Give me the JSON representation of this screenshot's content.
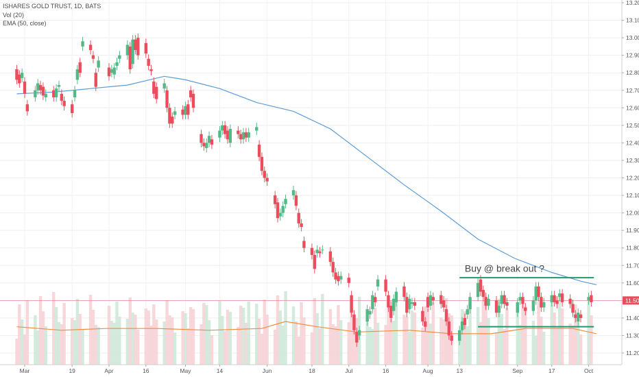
{
  "legend": {
    "title": "ISHARES GOLD TRUST, 1D, BATS",
    "vol": "Vol (20)",
    "ema": "EMA (50, close)"
  },
  "colors": {
    "up": "#53b987",
    "down": "#eb4d5c",
    "ema": "#5b9bd5",
    "vol_ma": "#f28c3c",
    "trendline": "#1e9a6e",
    "price_line": "#eb4d5c"
  },
  "current_price": "11.50",
  "annotation": "Buy @ break out ?",
  "chart_data": {
    "type": "candlestick",
    "title": "ISHARES GOLD TRUST, 1D, BATS",
    "yticks": [
      "13.20",
      "13.10",
      "13.00",
      "12.90",
      "12.80",
      "12.70",
      "12.60",
      "12.50",
      "12.40",
      "12.30",
      "12.20",
      "12.10",
      "12.00",
      "11.90",
      "11.80",
      "11.70",
      "11.60",
      "11.50",
      "11.40",
      "11.30",
      "11.20"
    ],
    "ylim": [
      11.17,
      13.22
    ],
    "xticks": [
      "Mar",
      "19",
      "Apr",
      "16",
      "May",
      "14",
      "Jun",
      "18",
      "Jul",
      "16",
      "Aug",
      "13",
      "Sep",
      "17",
      "Oct"
    ],
    "x_range_days": [
      "2018-02-26",
      "2018-10-05"
    ],
    "trendlines": [
      {
        "from": "2018-08-13",
        "to": "2018-10-03",
        "value": 11.63
      },
      {
        "from": "2018-08-20",
        "to": "2018-10-03",
        "value": 11.35
      }
    ],
    "annotation": {
      "text": "Buy @ break out ?",
      "date": "2018-08-15",
      "value": 11.68
    },
    "series": [
      {
        "name": "EMA (50, close)",
        "type": "line",
        "points": [
          [
            "2018-02-26",
            12.68
          ],
          [
            "2018-03-12",
            12.69
          ],
          [
            "2018-03-26",
            12.71
          ],
          [
            "2018-04-09",
            12.73
          ],
          [
            "2018-04-23",
            12.78
          ],
          [
            "2018-05-01",
            12.76
          ],
          [
            "2018-05-14",
            12.71
          ],
          [
            "2018-05-28",
            12.63
          ],
          [
            "2018-06-11",
            12.58
          ],
          [
            "2018-06-25",
            12.48
          ],
          [
            "2018-07-09",
            12.32
          ],
          [
            "2018-07-23",
            12.16
          ],
          [
            "2018-08-06",
            12.01
          ],
          [
            "2018-08-20",
            11.85
          ],
          [
            "2018-09-03",
            11.74
          ],
          [
            "2018-09-17",
            11.66
          ],
          [
            "2018-09-28",
            11.61
          ],
          [
            "2018-10-04",
            11.59
          ]
        ]
      },
      {
        "name": "Vol (20) MA",
        "type": "line",
        "points": [
          [
            "2018-02-26",
            11.35
          ],
          [
            "2018-03-15",
            11.33
          ],
          [
            "2018-04-01",
            11.34
          ],
          [
            "2018-04-20",
            11.34
          ],
          [
            "2018-05-10",
            11.33
          ],
          [
            "2018-05-30",
            11.34
          ],
          [
            "2018-06-08",
            11.38
          ],
          [
            "2018-06-20",
            11.35
          ],
          [
            "2018-07-05",
            11.32
          ],
          [
            "2018-07-25",
            11.33
          ],
          [
            "2018-08-10",
            11.31
          ],
          [
            "2018-08-25",
            11.31
          ],
          [
            "2018-09-07",
            11.34
          ],
          [
            "2018-09-25",
            11.34
          ],
          [
            "2018-10-04",
            11.31
          ]
        ]
      }
    ],
    "candles": [
      [
        "2018-02-26",
        12.82,
        12.76
      ],
      [
        "2018-02-27",
        12.79,
        12.74
      ],
      [
        "2018-02-28",
        12.77,
        12.8
      ],
      [
        "2018-03-01",
        12.75,
        12.68
      ],
      [
        "2018-03-02",
        12.62,
        12.58
      ],
      [
        "2018-03-05",
        12.66,
        12.7
      ],
      [
        "2018-03-06",
        12.7,
        12.74
      ],
      [
        "2018-03-07",
        12.73,
        12.7
      ],
      [
        "2018-03-08",
        12.72,
        12.67
      ],
      [
        "2018-03-09",
        12.66,
        12.68
      ],
      [
        "2018-03-12",
        12.7,
        12.66
      ],
      [
        "2018-03-13",
        12.66,
        12.71
      ],
      [
        "2018-03-14",
        12.72,
        12.73
      ],
      [
        "2018-03-15",
        12.68,
        12.64
      ],
      [
        "2018-03-16",
        12.64,
        12.61
      ],
      [
        "2018-03-19",
        12.62,
        12.57
      ],
      [
        "2018-03-20",
        12.66,
        12.7
      ],
      [
        "2018-03-21",
        12.76,
        12.82
      ],
      [
        "2018-03-22",
        12.86,
        12.8
      ],
      [
        "2018-03-23",
        12.95,
        12.98
      ],
      [
        "2018-03-26",
        12.96,
        12.93
      ],
      [
        "2018-03-27",
        12.9,
        12.88
      ],
      [
        "2018-03-28",
        12.8,
        12.72
      ],
      [
        "2018-03-29",
        12.83,
        12.87
      ],
      [
        "2018-04-02",
        12.83,
        12.78
      ],
      [
        "2018-04-03",
        12.8,
        12.82
      ],
      [
        "2018-04-04",
        12.79,
        12.83
      ],
      [
        "2018-04-05",
        12.84,
        12.86
      ],
      [
        "2018-04-06",
        12.88,
        12.9
      ],
      [
        "2018-04-09",
        12.9,
        12.96
      ],
      [
        "2018-04-10",
        12.95,
        12.82
      ],
      [
        "2018-04-11",
        12.85,
        12.99
      ],
      [
        "2018-04-12",
        12.99,
        12.93
      ],
      [
        "2018-04-13",
        13.0,
        12.9
      ],
      [
        "2018-04-16",
        12.97,
        12.91
      ],
      [
        "2018-04-17",
        12.88,
        12.84
      ],
      [
        "2018-04-18",
        12.82,
        12.81
      ],
      [
        "2018-04-19",
        12.75,
        12.68
      ],
      [
        "2018-04-20",
        12.72,
        12.65
      ],
      [
        "2018-04-23",
        12.71,
        12.74
      ],
      [
        "2018-04-24",
        12.7,
        12.6
      ],
      [
        "2018-04-25",
        12.6,
        12.51
      ],
      [
        "2018-04-26",
        12.55,
        12.51
      ],
      [
        "2018-04-27",
        12.56,
        12.58
      ],
      [
        "2018-04-30",
        12.59,
        12.56
      ],
      [
        "2018-05-01",
        12.56,
        12.61
      ],
      [
        "2018-05-02",
        12.62,
        12.56
      ],
      [
        "2018-05-03",
        12.7,
        12.66
      ],
      [
        "2018-05-04",
        12.68,
        12.6
      ],
      [
        "2018-05-07",
        12.45,
        12.4
      ],
      [
        "2018-05-08",
        12.4,
        12.38
      ],
      [
        "2018-05-09",
        12.37,
        12.4
      ],
      [
        "2018-05-10",
        12.4,
        12.44
      ],
      [
        "2018-05-11",
        12.42,
        12.39
      ],
      [
        "2018-05-14",
        12.43,
        12.47
      ],
      [
        "2018-05-15",
        12.47,
        12.5
      ],
      [
        "2018-05-16",
        12.5,
        12.45
      ],
      [
        "2018-05-17",
        12.47,
        12.42
      ],
      [
        "2018-05-18",
        12.4,
        12.48
      ],
      [
        "2018-05-21",
        12.47,
        12.45
      ],
      [
        "2018-05-22",
        12.45,
        12.42
      ],
      [
        "2018-05-23",
        12.42,
        12.46
      ],
      [
        "2018-05-24",
        12.46,
        12.43
      ],
      [
        "2018-05-25",
        12.43,
        12.46
      ],
      [
        "2018-05-28",
        12.47,
        12.49
      ],
      [
        "2018-05-29",
        12.39,
        12.32
      ],
      [
        "2018-05-30",
        12.32,
        12.24
      ],
      [
        "2018-05-31",
        12.24,
        12.2
      ],
      [
        "2018-06-01",
        12.2,
        12.18
      ],
      [
        "2018-06-04",
        12.1,
        12.05
      ],
      [
        "2018-06-05",
        12.06,
        11.97
      ],
      [
        "2018-06-06",
        11.98,
        12.0
      ],
      [
        "2018-06-07",
        12.0,
        12.04
      ],
      [
        "2018-06-08",
        12.05,
        12.08
      ],
      [
        "2018-06-11",
        12.1,
        12.13
      ],
      [
        "2018-06-12",
        12.1,
        12.04
      ],
      [
        "2018-06-13",
        12.0,
        11.94
      ],
      [
        "2018-06-14",
        11.94,
        11.92
      ],
      [
        "2018-06-15",
        11.84,
        11.8
      ],
      [
        "2018-06-18",
        11.8,
        11.76
      ],
      [
        "2018-06-19",
        11.76,
        11.68
      ],
      [
        "2018-06-20",
        11.77,
        11.79
      ],
      [
        "2018-06-21",
        11.78,
        11.77
      ],
      [
        "2018-06-22",
        11.79,
        11.79
      ],
      [
        "2018-06-25",
        11.78,
        11.72
      ],
      [
        "2018-06-26",
        11.72,
        11.66
      ],
      [
        "2018-06-27",
        11.66,
        11.62
      ],
      [
        "2018-06-28",
        11.64,
        11.61
      ],
      [
        "2018-06-29",
        11.62,
        11.64
      ],
      [
        "2018-07-02",
        11.63,
        11.6
      ],
      [
        "2018-07-03",
        11.53,
        11.43
      ],
      [
        "2018-07-04",
        11.42,
        11.33
      ],
      [
        "2018-07-05",
        11.32,
        11.26
      ],
      [
        "2018-07-06",
        11.3,
        11.33
      ],
      [
        "2018-07-09",
        11.38,
        11.45
      ],
      [
        "2018-07-10",
        11.42,
        11.44
      ],
      [
        "2018-07-11",
        11.45,
        11.53
      ],
      [
        "2018-07-12",
        11.52,
        11.49
      ],
      [
        "2018-07-13",
        11.58,
        11.62
      ],
      [
        "2018-07-16",
        11.62,
        11.55
      ],
      [
        "2018-07-17",
        11.53,
        11.46
      ],
      [
        "2018-07-18",
        11.47,
        11.4
      ],
      [
        "2018-07-19",
        11.44,
        11.51
      ],
      [
        "2018-07-20",
        11.49,
        11.55
      ],
      [
        "2018-07-23",
        11.58,
        11.52
      ],
      [
        "2018-07-24",
        11.52,
        11.43
      ],
      [
        "2018-07-25",
        11.45,
        11.51
      ],
      [
        "2018-07-26",
        11.48,
        11.49
      ],
      [
        "2018-07-27",
        11.49,
        11.47
      ],
      [
        "2018-07-30",
        11.44,
        11.38
      ],
      [
        "2018-07-31",
        11.38,
        11.35
      ],
      [
        "2018-08-01",
        11.52,
        11.46
      ]
    ]
  }
}
